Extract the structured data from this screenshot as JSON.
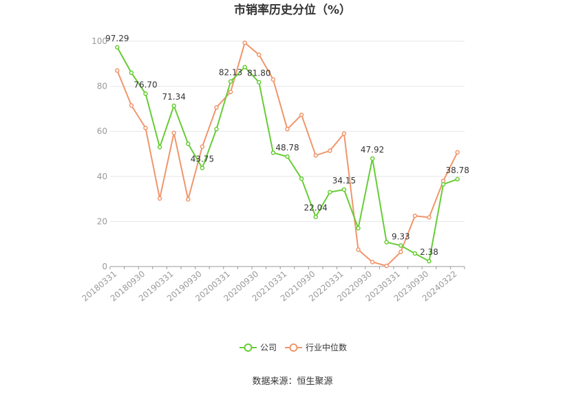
{
  "chart_data": {
    "type": "line",
    "title": "市销率历史分位（%）",
    "ylim": [
      0,
      100
    ],
    "y_ticks": [
      "0",
      "20",
      "40",
      "60",
      "80",
      "100"
    ],
    "x": [
      "20180331",
      "20180630",
      "20180930",
      "20181231",
      "20190331",
      "20190630",
      "20190930",
      "20191231",
      "20200331",
      "20200630",
      "20200930",
      "20201231",
      "20210331",
      "20210630",
      "20210930",
      "20211231",
      "20220331",
      "20220630",
      "20220930",
      "20221231",
      "20230331",
      "20230630",
      "20230930",
      "20231231",
      "20240322"
    ],
    "x_tick_labels": [
      "20180331",
      "",
      "20180930",
      "",
      "20190331",
      "",
      "20190930",
      "",
      "20200331",
      "",
      "20200930",
      "",
      "20210331",
      "",
      "20210930",
      "",
      "20220331",
      "",
      "20220930",
      "",
      "20230331",
      "",
      "20230930",
      "",
      "20240322"
    ],
    "grid": true,
    "legend_position": "bottom",
    "series": [
      {
        "name": "公司",
        "color": "#66cc33",
        "values": [
          97.29,
          86.0,
          76.7,
          53.0,
          71.34,
          54.5,
          43.75,
          61.0,
          82.13,
          88.5,
          81.8,
          50.5,
          48.78,
          39.0,
          22.04,
          33.0,
          34.15,
          17.0,
          47.92,
          10.8,
          9.33,
          5.8,
          2.38,
          36.5,
          38.78
        ],
        "labels": [
          "97.29",
          "",
          "76.70",
          "",
          "71.34",
          "",
          "43.75",
          "",
          "82.13",
          "",
          "81.80",
          "",
          "48.78",
          "",
          "22.04",
          "",
          "34.15",
          "",
          "47.92",
          "",
          "9.33",
          "",
          "2.38",
          "",
          "38.78"
        ]
      },
      {
        "name": "行业中位数",
        "color": "#f0956a",
        "values": [
          87.0,
          71.5,
          61.5,
          30.2,
          59.3,
          29.8,
          53.2,
          70.6,
          77.5,
          99.3,
          94.0,
          83.0,
          61.0,
          67.3,
          49.3,
          51.4,
          59.0,
          7.5,
          2.0,
          0.3,
          6.5,
          22.5,
          21.8,
          38.0,
          50.7
        ]
      }
    ]
  },
  "source": "数据来源：恒生聚源"
}
